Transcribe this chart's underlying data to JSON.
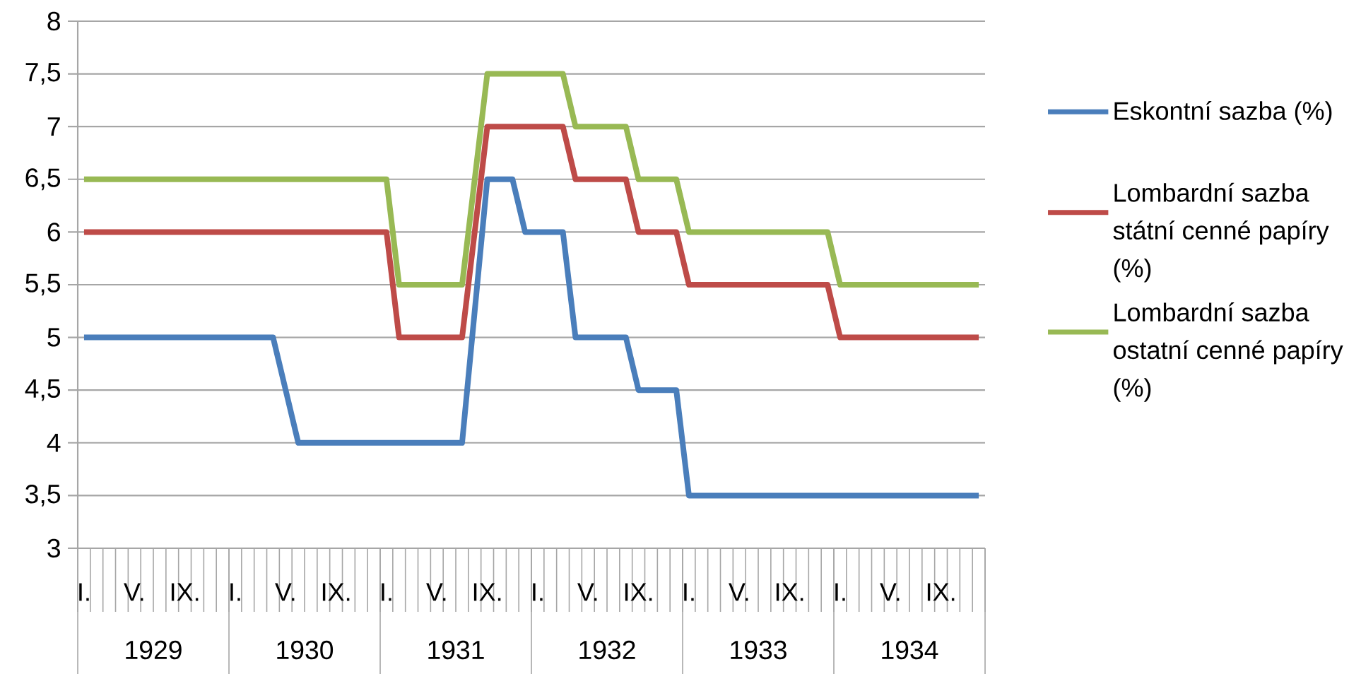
{
  "chart_data": {
    "type": "line",
    "categories": [
      "I.",
      null,
      null,
      null,
      "V.",
      null,
      null,
      null,
      "IX.",
      null,
      null,
      null,
      "I.",
      null,
      null,
      null,
      "V.",
      null,
      null,
      null,
      "IX.",
      null,
      null,
      null,
      "I.",
      null,
      null,
      null,
      "V.",
      null,
      null,
      null,
      "IX.",
      null,
      null,
      null,
      "I.",
      null,
      null,
      null,
      "V.",
      null,
      null,
      null,
      "IX.",
      null,
      null,
      null,
      "I.",
      null,
      null,
      null,
      "V.",
      null,
      null,
      null,
      "IX.",
      null,
      null,
      null,
      "I.",
      null,
      null,
      null,
      "V.",
      null,
      null,
      null,
      "IX.",
      null,
      null,
      null
    ],
    "series": [
      {
        "name": "Eskontní sazba (%)",
        "color": "#4a7ebb",
        "values": [
          5,
          5,
          5,
          5,
          5,
          5,
          5,
          5,
          5,
          5,
          5,
          5,
          5,
          5,
          5,
          5,
          4.5,
          4,
          4,
          4,
          4,
          4,
          4,
          4,
          4,
          4,
          4,
          4,
          4,
          4,
          4,
          5.25,
          6.5,
          6.5,
          6.5,
          6,
          6,
          6,
          6,
          5,
          5,
          5,
          5,
          5,
          4.5,
          4.5,
          4.5,
          4.5,
          3.5,
          3.5,
          3.5,
          3.5,
          3.5,
          3.5,
          3.5,
          3.5,
          3.5,
          3.5,
          3.5,
          3.5,
          3.5,
          3.5,
          3.5,
          3.5,
          3.5,
          3.5,
          3.5,
          3.5,
          3.5,
          3.5,
          3.5,
          3.5
        ]
      },
      {
        "name": "Lombardní sazba státní cenné papíry (%)",
        "color": "#be4b48",
        "values": [
          6,
          6,
          6,
          6,
          6,
          6,
          6,
          6,
          6,
          6,
          6,
          6,
          6,
          6,
          6,
          6,
          6,
          6,
          6,
          6,
          6,
          6,
          6,
          6,
          6,
          5,
          5,
          5,
          5,
          5,
          5,
          6,
          7,
          7,
          7,
          7,
          7,
          7,
          7,
          6.5,
          6.5,
          6.5,
          6.5,
          6.5,
          6,
          6,
          6,
          6,
          5.5,
          5.5,
          5.5,
          5.5,
          5.5,
          5.5,
          5.5,
          5.5,
          5.5,
          5.5,
          5.5,
          5.5,
          5,
          5,
          5,
          5,
          5,
          5,
          5,
          5,
          5,
          5,
          5,
          5
        ]
      },
      {
        "name": "Lombardní sazba ostatní cenné papíry (%)",
        "color": "#98b954",
        "values": [
          6.5,
          6.5,
          6.5,
          6.5,
          6.5,
          6.5,
          6.5,
          6.5,
          6.5,
          6.5,
          6.5,
          6.5,
          6.5,
          6.5,
          6.5,
          6.5,
          6.5,
          6.5,
          6.5,
          6.5,
          6.5,
          6.5,
          6.5,
          6.5,
          6.5,
          5.5,
          5.5,
          5.5,
          5.5,
          5.5,
          5.5,
          6.5,
          7.5,
          7.5,
          7.5,
          7.5,
          7.5,
          7.5,
          7.5,
          7,
          7,
          7,
          7,
          7,
          6.5,
          6.5,
          6.5,
          6.5,
          6,
          6,
          6,
          6,
          6,
          6,
          6,
          6,
          6,
          6,
          6,
          6,
          5.5,
          5.5,
          5.5,
          5.5,
          5.5,
          5.5,
          5.5,
          5.5,
          5.5,
          5.5,
          5.5,
          5.5
        ]
      }
    ],
    "ylim": [
      3,
      8
    ],
    "yticks": [
      3,
      {
        "value": 3.5,
        "label": "3,5"
      },
      4,
      {
        "value": 4.5,
        "label": "4,5"
      },
      5,
      {
        "value": 5.5,
        "label": "5,5"
      },
      6,
      {
        "value": 6.5,
        "label": "6,5"
      },
      7,
      {
        "value": 7.5,
        "label": "7,5"
      },
      8
    ],
    "grid": "y",
    "legend": "right",
    "annotations": [
      "1929",
      "1930",
      "1931",
      "1932",
      "1933",
      "1934"
    ]
  }
}
